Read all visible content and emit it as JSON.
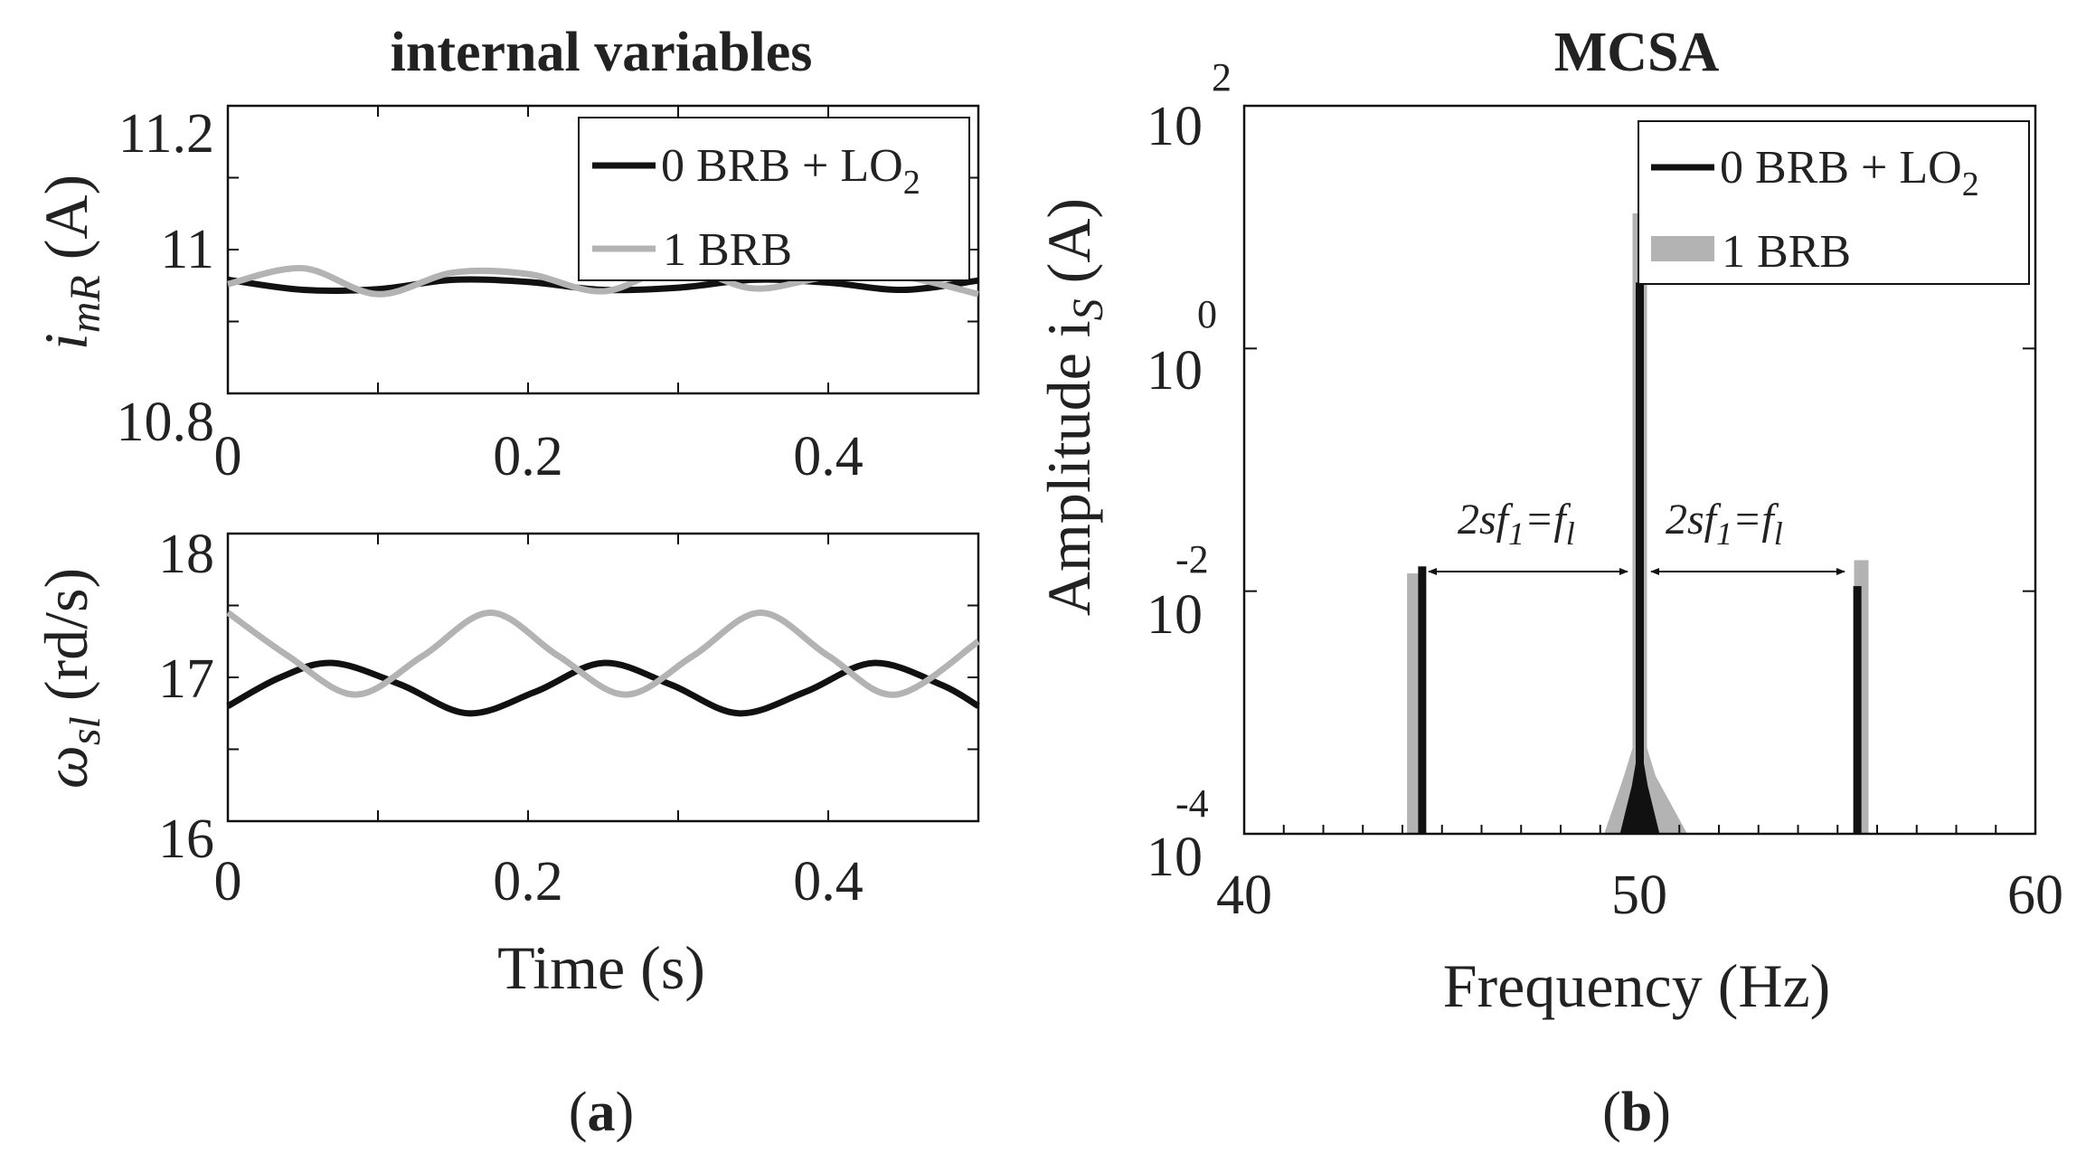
{
  "colors": {
    "black_series": "#111111",
    "gray_series": "#b3b3b3",
    "axis": "#111111"
  },
  "panel_a": {
    "title": "internal variables",
    "caption_open": "(",
    "caption_letter": "a",
    "caption_close": ")",
    "legend": {
      "series1": "0 BRB + LO",
      "series1_sub": "2",
      "series2": "1 BRB"
    },
    "top": {
      "ylabel_main": "i",
      "ylabel_sub": "mR",
      "ylabel_unit": " (A)",
      "ylim": [
        10.8,
        11.2
      ],
      "yticks": [
        "10.8",
        "11",
        "11.2"
      ],
      "xticks": [
        "0",
        "0.2",
        "0.4"
      ],
      "xlim": [
        0,
        0.5
      ]
    },
    "bottom": {
      "ylabel_main": "ω",
      "ylabel_sub": "sl",
      "ylabel_unit": " (rd/s)",
      "ylim": [
        16,
        18
      ],
      "yticks": [
        "16",
        "17",
        "18"
      ],
      "xticks": [
        "0",
        "0.2",
        "0.4"
      ],
      "xlim": [
        0,
        0.5
      ],
      "xlabel": "Time (s)"
    }
  },
  "panel_b": {
    "title": "MCSA",
    "caption_open": "(",
    "caption_letter": "b",
    "caption_close": ")",
    "ylabel_main": "Amplitude  i",
    "ylabel_sub": "S",
    "ylabel_unit": " (A)",
    "xlabel": "Frequency  (Hz)",
    "xticks": [
      "40",
      "50",
      "60"
    ],
    "ytick_base": "10",
    "ytick_exps": [
      "-4",
      "-2",
      "0",
      "2"
    ],
    "legend": {
      "series1": "0 BRB + LO",
      "series1_sub": "2",
      "series2": "1 BRB"
    },
    "annotation_left": {
      "pre": "2sf",
      "sub1": "1",
      "mid": "=f",
      "sub2": "l"
    },
    "annotation_right": {
      "pre": "2sf",
      "sub1": "1",
      "mid": "=f",
      "sub2": "l"
    }
  },
  "chart_data": [
    {
      "type": "line",
      "title": "internal variables",
      "xlabel": "",
      "ylabel": "i_mR (A)",
      "xlim": [
        0,
        0.5
      ],
      "ylim": [
        10.8,
        11.2
      ],
      "series": [
        {
          "name": "0 BRB + LO2",
          "color": "black",
          "model": "sine",
          "offset": 10.95,
          "amplitude": 0.008,
          "period": 0.18,
          "phase0": 0.0,
          "trend": "starts at 10.96 decreasing",
          "x": [
            0,
            0.05,
            0.1,
            0.15,
            0.2,
            0.25,
            0.3,
            0.35,
            0.4,
            0.45,
            0.5
          ],
          "y": [
            10.958,
            10.944,
            10.945,
            10.958,
            10.955,
            10.944,
            10.947,
            10.958,
            10.954,
            10.944,
            10.957
          ]
        },
        {
          "name": "1 BRB",
          "color": "gray",
          "x": [
            0,
            0.05,
            0.1,
            0.15,
            0.2,
            0.25,
            0.3,
            0.35,
            0.4,
            0.45,
            0.5
          ],
          "y": [
            10.952,
            10.974,
            10.938,
            10.968,
            10.966,
            10.942,
            10.976,
            10.946,
            10.962,
            10.962,
            10.938
          ]
        }
      ]
    },
    {
      "type": "line",
      "title": "",
      "xlabel": "Time (s)",
      "ylabel": "ω_sl (rd/s)",
      "xlim": [
        0,
        0.5
      ],
      "ylim": [
        16,
        18
      ],
      "series": [
        {
          "name": "0 BRB + LO2",
          "color": "black",
          "x": [
            0,
            0.035,
            0.07,
            0.115,
            0.16,
            0.205,
            0.25,
            0.295,
            0.34,
            0.385,
            0.43,
            0.475,
            0.5
          ],
          "y": [
            16.8,
            17.0,
            17.1,
            16.95,
            16.75,
            16.9,
            17.1,
            16.95,
            16.75,
            16.9,
            17.1,
            16.95,
            16.8
          ]
        },
        {
          "name": "1 BRB",
          "color": "gray",
          "x": [
            0,
            0.04,
            0.085,
            0.13,
            0.175,
            0.22,
            0.265,
            0.31,
            0.355,
            0.4,
            0.445,
            0.5
          ],
          "y": [
            17.45,
            17.15,
            16.88,
            17.15,
            17.45,
            17.15,
            16.88,
            17.15,
            17.45,
            17.15,
            16.88,
            17.25
          ]
        }
      ]
    },
    {
      "type": "line",
      "title": "MCSA",
      "xlabel": "Frequency  (Hz)",
      "ylabel": "Amplitude i_S (A)",
      "yscale": "log",
      "xlim": [
        40,
        60
      ],
      "ylim": [
        0.0001,
        100
      ],
      "series": [
        {
          "name": "0 BRB + LO2",
          "color": "black",
          "peaks": [
            {
              "x": 44.5,
              "y": 0.016
            },
            {
              "x": 50,
              "y": 3.5
            },
            {
              "x": 55.5,
              "y": 0.011
            }
          ],
          "skirt": [
            {
              "x": 49.5,
              "y": 0.0001
            },
            {
              "x": 49.8,
              "y": 0.00025
            },
            {
              "x": 50,
              "y": 0.0006
            },
            {
              "x": 50.2,
              "y": 0.00025
            },
            {
              "x": 50.5,
              "y": 0.0001
            }
          ]
        },
        {
          "name": "1 BRB",
          "color": "gray",
          "peaks": [
            {
              "x": 44.3,
              "y": 0.014
            },
            {
              "x": 50,
              "y": 13
            },
            {
              "x": 55.6,
              "y": 0.018
            }
          ],
          "skirt": [
            {
              "x": 49.1,
              "y": 0.0001
            },
            {
              "x": 49.6,
              "y": 0.0003
            },
            {
              "x": 50,
              "y": 0.0008
            },
            {
              "x": 50.4,
              "y": 0.0003
            },
            {
              "x": 51.2,
              "y": 0.0001
            }
          ]
        }
      ],
      "annotations": [
        {
          "text": "2sf1=fl",
          "from_x": 44.5,
          "to_x": 50,
          "y": 0.0045
        },
        {
          "text": "2sf1=fl",
          "from_x": 50,
          "to_x": 55.5,
          "y": 0.0045
        }
      ]
    }
  ]
}
